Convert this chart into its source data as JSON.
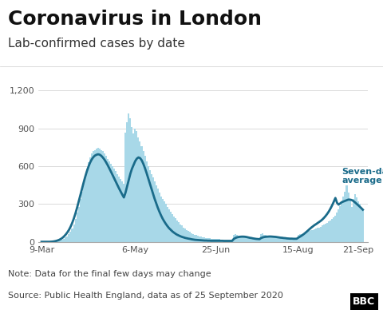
{
  "title": "Coronavirus in London",
  "subtitle": "Lab-confirmed cases by date",
  "note": "Note: Data for the final few days may change",
  "source": "Source: Public Health England, data as of 25 September 2020",
  "ylabel_ticks": [
    0,
    300,
    600,
    900,
    1200
  ],
  "ylim": [
    0,
    1280
  ],
  "bar_color": "#a8d8e8",
  "line_color": "#1a6b8a",
  "annotation_color": "#1a6b8a",
  "annotation_text": "Seven-day\naverage",
  "title_fontsize": 18,
  "subtitle_fontsize": 11,
  "note_fontsize": 8,
  "source_fontsize": 8,
  "tick_label_color": "#555555",
  "xtick_labels": [
    "9-Mar",
    "6-May",
    "25-Jun",
    "15-Aug",
    "21-Sep"
  ],
  "xtick_positions": [
    0,
    58,
    108,
    159,
    196
  ],
  "background_color": "#ffffff",
  "daily_cases": [
    0,
    0,
    0,
    1,
    1,
    2,
    2,
    3,
    4,
    5,
    8,
    10,
    14,
    18,
    25,
    33,
    45,
    60,
    80,
    105,
    140,
    180,
    230,
    280,
    340,
    400,
    460,
    520,
    580,
    630,
    670,
    700,
    720,
    730,
    740,
    745,
    740,
    730,
    720,
    700,
    680,
    660,
    640,
    620,
    600,
    580,
    560,
    540,
    520,
    500,
    480,
    460,
    870,
    950,
    1020,
    980,
    910,
    860,
    900,
    880,
    830,
    800,
    760,
    720,
    680,
    640,
    600,
    570,
    540,
    510,
    480,
    450,
    420,
    390,
    360,
    340,
    320,
    300,
    280,
    260,
    240,
    220,
    200,
    185,
    170,
    155,
    140,
    128,
    115,
    105,
    95,
    85,
    78,
    70,
    63,
    57,
    52,
    47,
    43,
    40,
    37,
    34,
    32,
    30,
    28,
    26,
    25,
    23,
    22,
    21,
    20,
    19,
    18,
    18,
    17,
    17,
    16,
    16,
    16,
    55,
    60,
    55,
    50,
    45,
    42,
    38,
    35,
    32,
    30,
    28,
    26,
    24,
    23,
    22,
    21,
    20,
    60,
    65,
    55,
    52,
    48,
    45,
    42,
    40,
    38,
    36,
    34,
    32,
    30,
    29,
    28,
    27,
    26,
    25,
    25,
    24,
    24,
    23,
    23,
    55,
    60,
    62,
    65,
    70,
    75,
    80,
    85,
    90,
    95,
    100,
    105,
    110,
    115,
    120,
    128,
    135,
    142,
    150,
    160,
    170,
    182,
    195,
    210,
    230,
    255,
    285,
    320,
    360,
    400,
    450,
    390,
    330,
    280,
    340,
    380,
    350,
    320,
    300,
    270,
    250
  ],
  "seven_day_avg": [
    0,
    0,
    0,
    0,
    0,
    0,
    1,
    2,
    4,
    7,
    11,
    16,
    23,
    32,
    44,
    58,
    75,
    95,
    120,
    150,
    185,
    225,
    270,
    318,
    368,
    418,
    467,
    514,
    557,
    594,
    627,
    652,
    671,
    684,
    691,
    695,
    692,
    683,
    669,
    652,
    631,
    608,
    583,
    557,
    531,
    504,
    477,
    450,
    424,
    399,
    375,
    352,
    390,
    440,
    490,
    540,
    580,
    610,
    640,
    660,
    670,
    665,
    648,
    621,
    587,
    549,
    508,
    466,
    424,
    383,
    343,
    306,
    271,
    239,
    210,
    184,
    162,
    142,
    124,
    108,
    95,
    83,
    73,
    64,
    56,
    50,
    44,
    39,
    35,
    31,
    28,
    25,
    23,
    20,
    18,
    16,
    15,
    14,
    13,
    12,
    11,
    10,
    10,
    9,
    9,
    8,
    8,
    8,
    8,
    8,
    8,
    8,
    8,
    7,
    7,
    7,
    7,
    7,
    7,
    22,
    30,
    35,
    38,
    40,
    41,
    41,
    40,
    38,
    35,
    32,
    30,
    27,
    25,
    23,
    22,
    21,
    30,
    35,
    38,
    40,
    41,
    42,
    42,
    41,
    40,
    39,
    37,
    35,
    33,
    32,
    30,
    29,
    27,
    26,
    25,
    25,
    24,
    24,
    24,
    33,
    40,
    48,
    57,
    67,
    78,
    89,
    101,
    112,
    122,
    132,
    140,
    149,
    158,
    167,
    178,
    191,
    206,
    223,
    242,
    265,
    290,
    318,
    348,
    310,
    295,
    305,
    315,
    320,
    325,
    330,
    335,
    335,
    332,
    325,
    315,
    303,
    292,
    280,
    268,
    255
  ]
}
